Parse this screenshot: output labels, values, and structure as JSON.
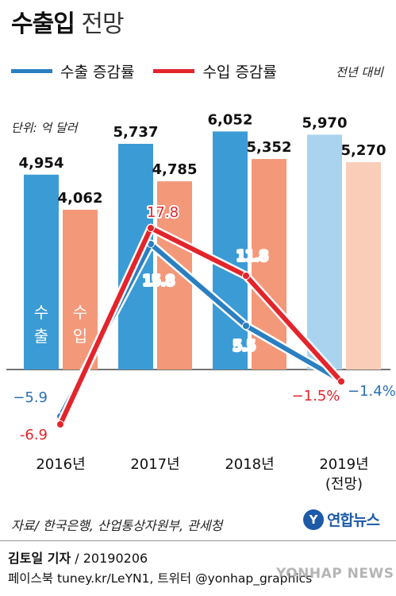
{
  "title": {
    "bold": "수출입",
    "light": "전망"
  },
  "legend": {
    "export_label": "수출 증감률",
    "import_label": "수입 증감률",
    "note": "전년 대비"
  },
  "unit": "단위: 억 달러",
  "bar_labels": {
    "export": [
      "수",
      "출"
    ],
    "import": [
      "수",
      "입"
    ]
  },
  "colors": {
    "export_bar": "#3b9bd5",
    "export_bar_forecast": "#a9d3ee",
    "import_bar": "#f4987a",
    "import_bar_forecast": "#f9cdb8",
    "export_line": "#2a7fc0",
    "import_line": "#e3242b",
    "growth_export_label": "#2a6fb5",
    "growth_import_label": "#e3242b"
  },
  "chart_data": {
    "type": "bar",
    "categories": [
      "2016년",
      "2017년",
      "2018년",
      "2019년\n(전망)"
    ],
    "category_lines": [
      [
        "2016년"
      ],
      [
        "2017년"
      ],
      [
        "2018년"
      ],
      [
        "2019년",
        "(전망)"
      ]
    ],
    "series": [
      {
        "name": "수출",
        "values": [
          4954,
          5737,
          6052,
          5970
        ],
        "labels": [
          "4,954",
          "5,737",
          "6,052",
          "5,970"
        ]
      },
      {
        "name": "수입",
        "values": [
          4062,
          4785,
          5352,
          5270
        ],
        "labels": [
          "4,062",
          "4,785",
          "5,352",
          "5,270"
        ]
      }
    ],
    "lines": [
      {
        "name": "수출 증감률",
        "values": [
          -5.9,
          15.8,
          5.5,
          -1.4
        ],
        "labels": [
          "−5.9",
          "15.8",
          "5.5",
          "−1.4%"
        ]
      },
      {
        "name": "수입 증감률",
        "values": [
          -6.9,
          17.8,
          11.8,
          -1.5
        ],
        "labels": [
          "-6.9",
          "17.8",
          "11.8",
          "−1.5%"
        ]
      }
    ],
    "forecast_category_index": 3,
    "ylabel": "억 달러"
  },
  "source": "자료/ 한국은행, 산업통상자원부, 관세청",
  "logo": {
    "mark": "Y",
    "text": "연합뉴스"
  },
  "credit": {
    "name": "김토일 기자",
    "date": " / 20190206"
  },
  "credit2": "페이스북 tuney.kr/LeYN1, 트위터 @yonhap_graphics",
  "watermark": "YONHAP NEWS"
}
